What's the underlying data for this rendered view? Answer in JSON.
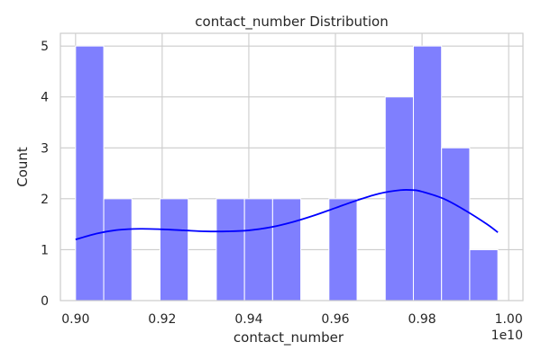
{
  "chart_data": {
    "type": "histogram",
    "title": "contact_number Distribution",
    "xlabel": "contact_number",
    "ylabel": "Count",
    "x_offset_label": "1e10",
    "x_scale": 10000000000,
    "xlim": [
      0.8965,
      1.0033
    ],
    "ylim": [
      0,
      5.25
    ],
    "x_ticks": [
      0.9,
      0.92,
      0.94,
      0.96,
      0.98,
      1.0
    ],
    "x_tick_labels": [
      "0.90",
      "0.92",
      "0.94",
      "0.96",
      "0.98",
      "1.00"
    ],
    "y_ticks": [
      0,
      1,
      2,
      3,
      4,
      5
    ],
    "y_tick_labels": [
      "0",
      "1",
      "2",
      "3",
      "4",
      "5"
    ],
    "grid": true,
    "bin_edges": [
      0.9,
      0.9065,
      0.913,
      0.9195,
      0.926,
      0.9325,
      0.939,
      0.9455,
      0.952,
      0.9585,
      0.965,
      0.9715,
      0.978,
      0.9845,
      0.991,
      0.9975
    ],
    "counts": [
      5,
      2,
      0,
      2,
      0,
      2,
      2,
      2,
      0,
      2,
      0,
      4,
      5,
      3,
      1
    ],
    "bar_color": "#7f7ffe",
    "kde": {
      "color": "#0000ff",
      "x": [
        0.9,
        0.905,
        0.91,
        0.915,
        0.92,
        0.925,
        0.93,
        0.935,
        0.94,
        0.945,
        0.95,
        0.955,
        0.96,
        0.965,
        0.97,
        0.975,
        0.978,
        0.98,
        0.985,
        0.99,
        0.995,
        0.9975
      ],
      "y": [
        1.2,
        1.32,
        1.39,
        1.41,
        1.4,
        1.38,
        1.36,
        1.36,
        1.38,
        1.44,
        1.54,
        1.67,
        1.82,
        1.97,
        2.1,
        2.17,
        2.17,
        2.14,
        2.0,
        1.77,
        1.5,
        1.34
      ]
    }
  }
}
